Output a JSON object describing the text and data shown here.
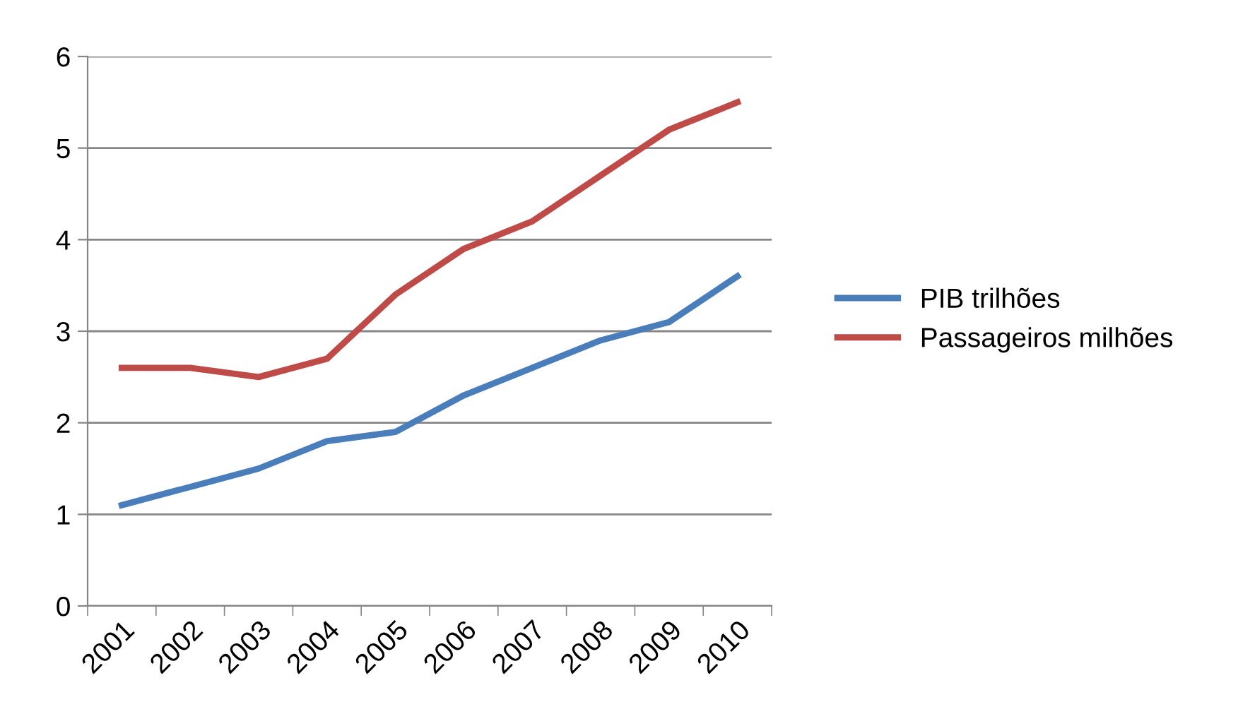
{
  "chart_data": {
    "type": "line",
    "categories": [
      "2001",
      "2002",
      "2003",
      "2004",
      "2005",
      "2006",
      "2007",
      "2008",
      "2009",
      "2010"
    ],
    "series": [
      {
        "name": "PIB trilhões",
        "color": "#4a7ebb",
        "values": [
          1.1,
          1.3,
          1.5,
          1.8,
          1.9,
          2.3,
          2.6,
          2.9,
          3.1,
          3.6
        ]
      },
      {
        "name": "Passageiros milhões",
        "color": "#be4b48",
        "values": [
          2.6,
          2.6,
          2.5,
          2.7,
          3.4,
          3.9,
          4.2,
          4.7,
          5.2,
          5.5
        ]
      }
    ],
    "ylim": [
      0,
      6
    ],
    "yticks": [
      0,
      1,
      2,
      3,
      4,
      5,
      6
    ],
    "grid": "y",
    "legend": "right",
    "marker": "none",
    "line_style": "solid"
  }
}
